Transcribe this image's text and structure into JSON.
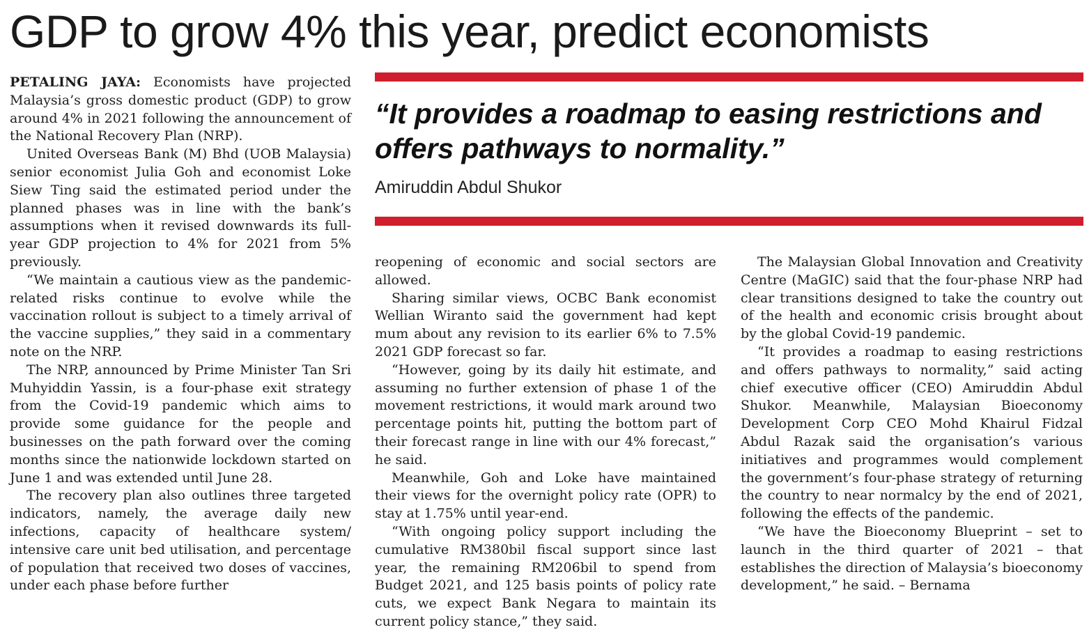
{
  "headline": "GDP to grow 4% this year, predict economists",
  "pull_quote": {
    "quote": "“It provides a roadmap to easing restrictions and offers pathways to normality.”",
    "attribution": "Amiruddin Abdul Shukor",
    "rule_color": "#d01e2e"
  },
  "article": {
    "dateline": "PETALING JAYA:",
    "column_1": [
      "Economists have projected Malaysia’s gross domestic product (GDP) to grow around 4% in 2021 following the announcement of the National Recovery Plan (NRP).",
      "United Overseas Bank (M) Bhd (UOB Malaysia) senior economist Julia Goh and economist Loke Siew Ting said the estimated period under the planned phases was in line with the bank’s assumptions when it revised downwards its full-year GDP projection to 4% for 2021 from 5% previously.",
      "“We maintain a cautious view as the pandemic-related risks continue to evolve while the vaccination rollout is subject to a timely arrival of the vaccine supplies,” they said in a commentary note on the NRP.",
      "The NRP, announced by Prime Minister Tan Sri Muhyiddin Yassin, is a four-phase exit strategy from the Covid-19 pandemic which aims to provide some guidance for the people and businesses on the path forward over the coming months since the nationwide lockdown started on June 1 and was extended until June 28.",
      "The recovery plan also outlines three targeted indicators, namely, the average daily new infections, capacity of healthcare system/ intensive care unit bed utilisation, and percentage of population that received two doses of vaccines, under each phase before further"
    ],
    "column_2": [
      "reopening of economic and social sectors are allowed.",
      "Sharing similar views, OCBC Bank economist Wellian Wiranto said the government had kept mum about any revision to its earlier 6% to 7.5% 2021 GDP forecast so far.",
      "“However, going by its daily hit estimate, and assuming no further extension of phase 1 of the movement restrictions, it would mark around two percentage points hit, putting the bottom part of their forecast range in line with our 4% forecast,” he said.",
      "Meanwhile, Goh and Loke have maintained their views for the overnight policy rate (OPR) to stay at 1.75% until year-end.",
      "“With ongoing policy support including the cumulative RM380bil fiscal support since last year, the remaining RM206bil to spend from Budget 2021, and 125 basis points of policy rate cuts, we expect Bank Negara to maintain its current policy stance,” they said."
    ],
    "column_3": [
      "The Malaysian Global Innovation and Creativity Centre (MaGIC) said that the four-phase NRP had clear transitions designed to take the country out of the health and economic crisis brought about by the global Covid-19 pandemic.",
      "“It provides a roadmap to easing restrictions and offers pathways to normality,” said acting chief executive officer (CEO) Amiruddin Abdul Shukor. Meanwhile, Malaysian Bioeconomy Development Corp CEO Mohd Khairul Fidzal Abdul Razak said the organisation’s various initiatives and programmes would complement the government’s four-phase strategy of returning the country to near normalcy by the end of 2021, following the effects of the pandemic.",
      "“We have the Bioeconomy Blueprint – set to launch in the third quarter of 2021 – that establishes the direction of Malaysia’s bioeconomy development,” he said. – Bernama"
    ]
  }
}
